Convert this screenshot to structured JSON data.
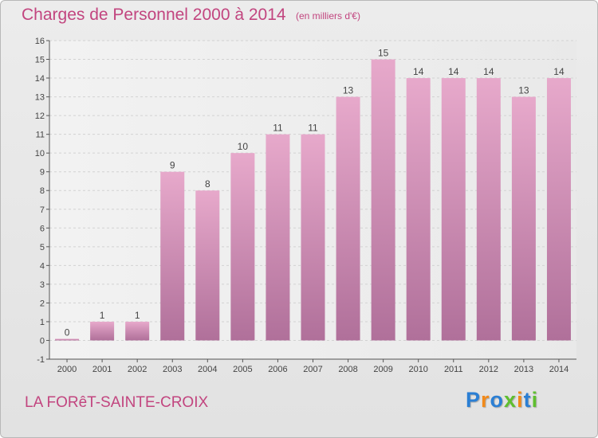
{
  "header": {
    "title": "Charges de Personnel 2000 à 2014",
    "subtitle": "(en milliers d'€)"
  },
  "footer": {
    "place": "LA FORêT-SAINTE-CROIX",
    "logo_text": "Proxiti",
    "logo_letters": [
      {
        "char": "P",
        "color": "#2b7fd4"
      },
      {
        "char": "r",
        "color": "#f28a1a"
      },
      {
        "char": "o",
        "color": "#2b7fd4"
      },
      {
        "char": "x",
        "color": "#5fbf2f"
      },
      {
        "char": "i",
        "color": "#f28a1a"
      },
      {
        "char": "t",
        "color": "#2b7fd4"
      },
      {
        "char": "i",
        "color": "#5fbf2f"
      }
    ]
  },
  "colors": {
    "bar_top": "#e7a9cb",
    "bar_bottom": "#b0709a",
    "title": "#c2457f"
  },
  "chart_data": {
    "type": "bar",
    "title": "Charges de Personnel 2000 à 2014",
    "subtitle": "(en milliers d'€)",
    "xlabel": "",
    "ylabel": "",
    "categories": [
      "2000",
      "2001",
      "2002",
      "2003",
      "2004",
      "2005",
      "2006",
      "2007",
      "2008",
      "2009",
      "2010",
      "2011",
      "2012",
      "2013",
      "2014"
    ],
    "values": [
      0,
      1,
      1,
      9,
      8,
      10,
      11,
      11,
      13,
      15,
      14,
      14,
      14,
      13,
      14
    ],
    "data_labels": [
      "0",
      "1",
      "1",
      "9",
      "8",
      "10",
      "11",
      "11",
      "13",
      "15",
      "14",
      "14",
      "14",
      "13",
      "14"
    ],
    "ylim": [
      -1,
      16
    ],
    "yticks": [
      -1,
      0,
      1,
      2,
      3,
      4,
      5,
      6,
      7,
      8,
      9,
      10,
      11,
      12,
      13,
      14,
      15,
      16
    ],
    "grid": true,
    "legend": "none"
  }
}
